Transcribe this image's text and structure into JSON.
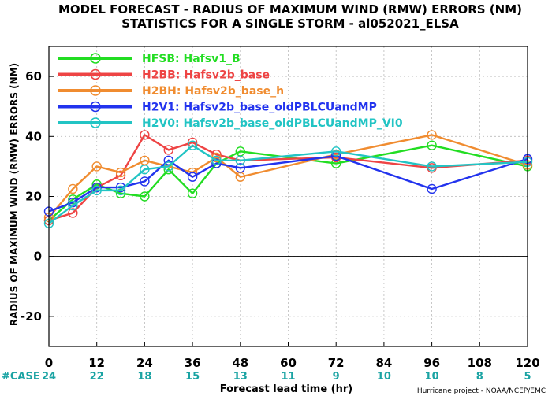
{
  "chart_data": {
    "type": "line",
    "title": "MODEL FORECAST - RADIUS OF MAXIMUM WIND (RMW) ERRORS (NM)",
    "subtitle": "STATISTICS FOR A SINGLE STORM - al052021_ELSA",
    "xlabel": "Forecast lead time (hr)",
    "ylabel": "RADIUS OF MAXIMUM WIND (RMW) ERRORS (NM)",
    "xlim": [
      0,
      120
    ],
    "ylim": [
      -30,
      70
    ],
    "xticks": [
      0,
      12,
      24,
      36,
      48,
      60,
      72,
      84,
      96,
      108,
      120
    ],
    "yticks": [
      -20,
      0,
      20,
      40,
      60
    ],
    "x": [
      0,
      6,
      12,
      18,
      24,
      30,
      36,
      42,
      48,
      72,
      96,
      120
    ],
    "series": [
      {
        "name": "HFSB: Hafsv1_B",
        "color": "#22dd22",
        "values": [
          12,
          19,
          24,
          21,
          20,
          29,
          21,
          31,
          35,
          31,
          37,
          30
        ]
      },
      {
        "name": "H2BB: Hafsv2b_base",
        "color": "#ee4444",
        "values": [
          12,
          14.5,
          23,
          27,
          40.5,
          35.5,
          38,
          34,
          32,
          33,
          29.5,
          32
        ]
      },
      {
        "name": "H2BH: Hafsv2b_base_h",
        "color": "#f08c30",
        "values": [
          13,
          22.5,
          30,
          28,
          32,
          30,
          28,
          33,
          26.5,
          34,
          40.5,
          30.5
        ]
      },
      {
        "name": "H2V1: Hafsv2b_base_oldPBLCUandMP",
        "color": "#2233ee",
        "values": [
          15,
          18,
          23,
          23,
          25,
          32,
          26.5,
          31,
          29.5,
          33.5,
          22.5,
          32.5
        ]
      },
      {
        "name": "H2V0: Hafsv2b_base_oldPBLCUandMP_VI0",
        "color": "#22c4c4",
        "values": [
          11,
          17,
          22,
          22,
          29,
          30,
          37,
          32,
          32,
          35,
          30,
          31.5
        ]
      }
    ],
    "grid": true,
    "legend_position": "top-left"
  },
  "cases": {
    "label": "#CASE",
    "x": [
      0,
      12,
      24,
      36,
      48,
      60,
      72,
      84,
      96,
      108,
      120
    ],
    "values": [
      "24",
      "22",
      "18",
      "15",
      "13",
      "11",
      "9",
      "10",
      "10",
      "8",
      "5"
    ]
  },
  "credit": "Hurricane project - NOAA/NCEP/EMC"
}
